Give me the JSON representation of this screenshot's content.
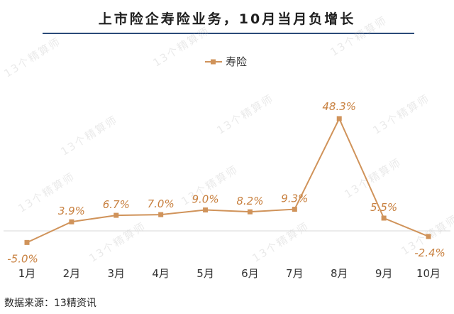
{
  "title": "上市险企寿险业务，10月当月负增长",
  "source": "数据来源：13精资讯",
  "watermark": "13个精算师",
  "chart_data": {
    "type": "line",
    "title": "上市险企寿险业务，10月当月负增长",
    "categories": [
      "1月",
      "2月",
      "3月",
      "4月",
      "5月",
      "6月",
      "7月",
      "8月",
      "9月",
      "10月"
    ],
    "series": [
      {
        "name": "寿险",
        "values": [
          -5.0,
          3.9,
          6.7,
          7.0,
          9.0,
          8.2,
          9.3,
          48.3,
          5.5,
          -2.4
        ],
        "labels": [
          "-5.0%",
          "3.9%",
          "6.7%",
          "7.0%",
          "9.0%",
          "8.2%",
          "9.3%",
          "48.3%",
          "5.5%",
          "-2.4%"
        ]
      }
    ],
    "legend_position": "top",
    "grid": false,
    "ylim": [
      -10,
      60
    ],
    "colors": {
      "line": "#d0935a",
      "label": "#c8803f"
    }
  }
}
